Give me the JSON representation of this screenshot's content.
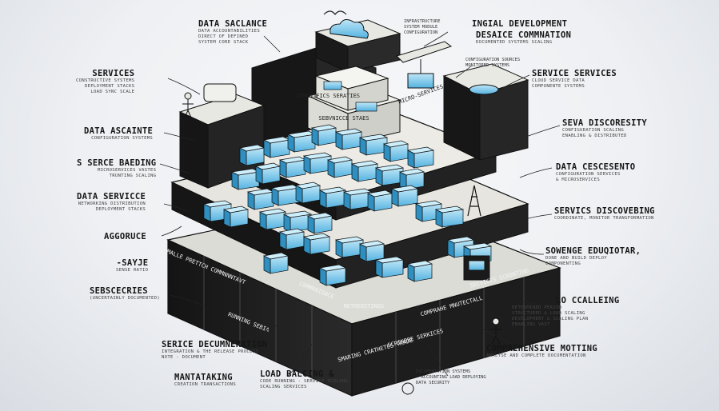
{
  "left_labels": [
    {
      "title": "Services",
      "sub": [
        "Constructive Systems",
        "Deployment Stacks",
        "Load Sync Scale"
      ]
    },
    {
      "title": "Data Ascainte",
      "sub": [
        "Configuration Systems"
      ]
    },
    {
      "title": "S Serce Baeding",
      "sub": [
        "Microservices Vastes",
        "Trunting Scaling"
      ]
    },
    {
      "title": "Data Servicce",
      "sub": [
        "Networking Distribution",
        "Deployment Stacks"
      ]
    },
    {
      "title": "Aggoruce",
      "sub": []
    },
    {
      "title": "-Sayje",
      "sub": [
        "Sense Ratio"
      ]
    },
    {
      "title": "Sebscecries",
      "sub": [
        "(Uncertainly Documented)"
      ]
    },
    {
      "title": "Serice Decumneration",
      "sub": [
        "Integration & The Release Process",
        "Note - Document"
      ]
    },
    {
      "title": "Mantataking",
      "sub": [
        "Creation Transactions"
      ]
    }
  ],
  "top_labels": [
    {
      "title": "Data Saclance",
      "sub": [
        "Data Accountabilities",
        "Direct Of Defined",
        "System Core Stack"
      ]
    },
    {
      "title": "",
      "sub": [
        "Infrastructure",
        "System Module",
        "Configuration"
      ]
    },
    {
      "title": "Ingial Development",
      "sub": []
    },
    {
      "title": "Desaice Commnation",
      "sub": [
        "Documented Systems Scaling"
      ]
    },
    {
      "title": "",
      "sub": [
        "Configuration Sources",
        "Monitored Systems"
      ]
    }
  ],
  "right_labels": [
    {
      "title": "Service Services",
      "sub": [
        "Cloud Service Data",
        "Componente Systems"
      ]
    },
    {
      "title": "Seva Discoresity",
      "sub": [
        "Configuration Scaling",
        "Enabling & Distributed"
      ]
    },
    {
      "title": "Data Cescesento",
      "sub": [
        "Configuration Services",
        "& Microservices"
      ]
    },
    {
      "title": "Servics Discovebing",
      "sub": [
        "Coordinate, Monitor Transformation"
      ]
    },
    {
      "title": "Sowenge Eduqiotar,",
      "sub": [
        "Done And Build Deploy",
        "Componenting"
      ]
    },
    {
      "title": "Lo Ccalleing",
      "sub": [
        "Determined Period",
        "Structured & Load Scaling",
        "Development & Scaling Plan",
        "Enabling Vast"
      ]
    },
    {
      "title": "Comprehensive Motting",
      "sub": [
        "Analyse And Complete Documentation"
      ]
    }
  ],
  "bottom_labels": [
    {
      "title": "Load Balcing &",
      "sub": [
        "Code Running - Service Scaling",
        "Scaling Services"
      ]
    },
    {
      "title": "",
      "sub": [
        "Documentation Systems",
        "- Accounting Load Deploying",
        "Data Security"
      ]
    }
  ],
  "center_texts": [
    "Micro-Services",
    "Smalle Prettch Commnnntavt",
    "Running Sebia",
    "Commrnignce",
    "Netreoitings",
    "Comprahe Mnutectall",
    "Smaring Crathetes Trade",
    "Scrinbbe Serkices",
    "Secvices Scrdnting",
    "Sebvnicce Staes",
    "Comnnifics Seraties"
  ],
  "colors": {
    "block_dark": "#1a1a1a",
    "block_top": "#ecebe6",
    "accent_blue": "#6cc2ea",
    "accent_blue_dark": "#2f8fc0",
    "ink": "#151515"
  },
  "icons": [
    "cloud-icon",
    "bird-icon",
    "drone-icon",
    "person-icon",
    "radio-tower-icon",
    "robot-icon",
    "dish-icon"
  ]
}
